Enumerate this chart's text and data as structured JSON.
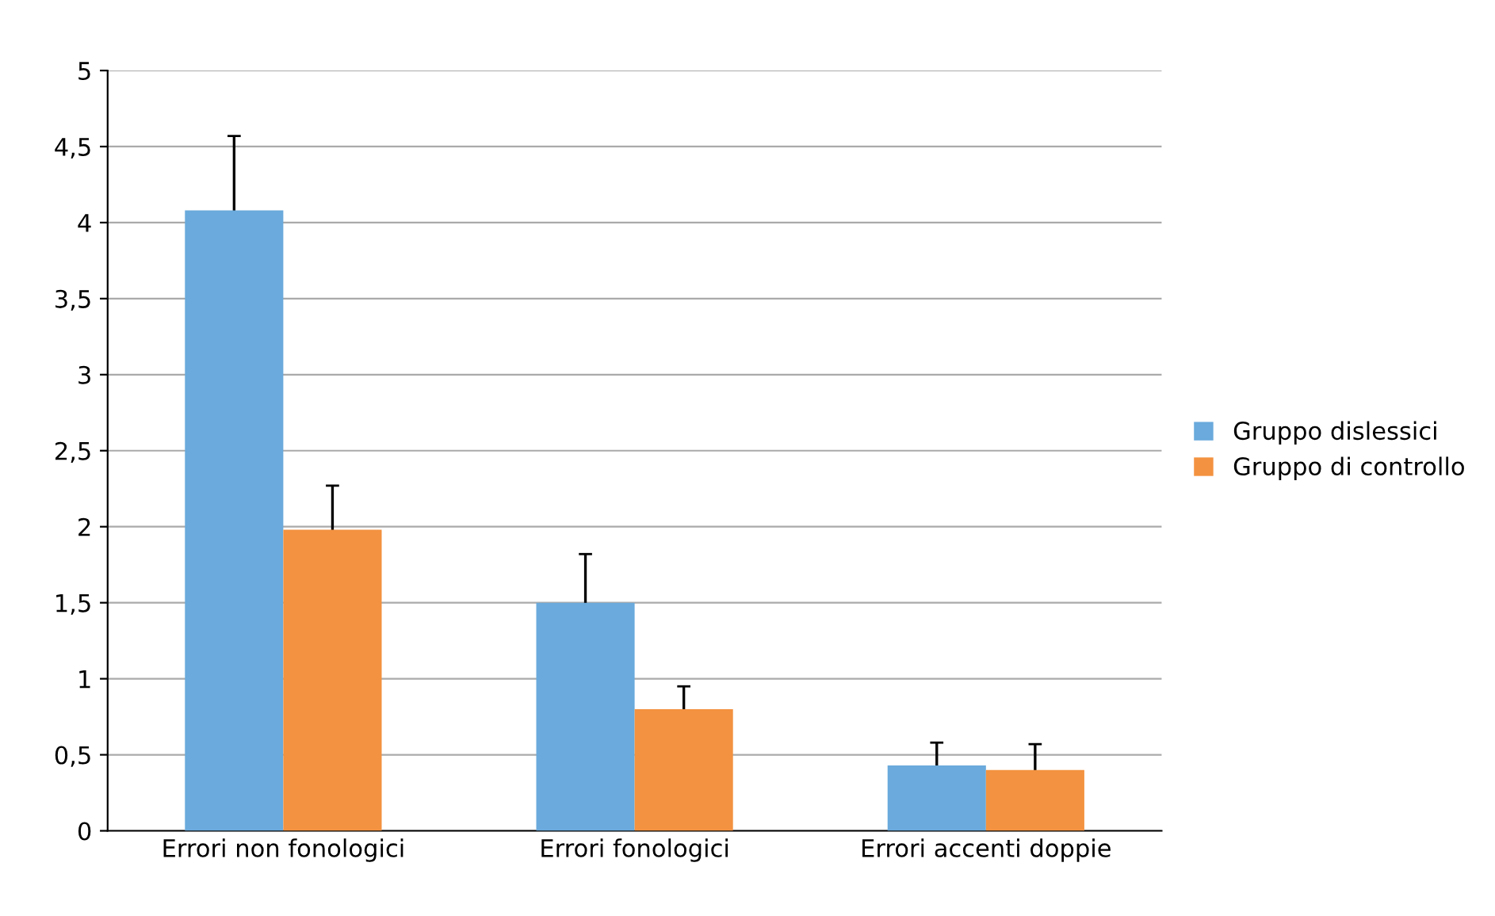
{
  "chart_data": {
    "type": "bar",
    "categories": [
      "Errori non fonologici",
      "Errori fonologici",
      "Errori accenti doppie"
    ],
    "series": [
      {
        "name": "Gruppo dislessici",
        "color": "#6aaadc",
        "values": [
          4.08,
          1.5,
          0.43
        ],
        "errors": [
          0.49,
          0.32,
          0.15
        ]
      },
      {
        "name": "Gruppo di controllo",
        "color": "#f39240",
        "values": [
          1.98,
          0.8,
          0.4
        ],
        "errors": [
          0.29,
          0.15,
          0.17
        ]
      }
    ],
    "ylim": [
      0,
      5
    ],
    "yticks": [
      0,
      {
        "value": 0.5,
        "label": "0,5"
      },
      1,
      {
        "value": 1.5,
        "label": "1,5"
      },
      2,
      {
        "value": 2.5,
        "label": "2,5"
      },
      3,
      {
        "value": 3.5,
        "label": "3,5"
      },
      4,
      {
        "value": 4.5,
        "label": "4,5"
      },
      5
    ],
    "grid": "y",
    "legend": "right"
  }
}
